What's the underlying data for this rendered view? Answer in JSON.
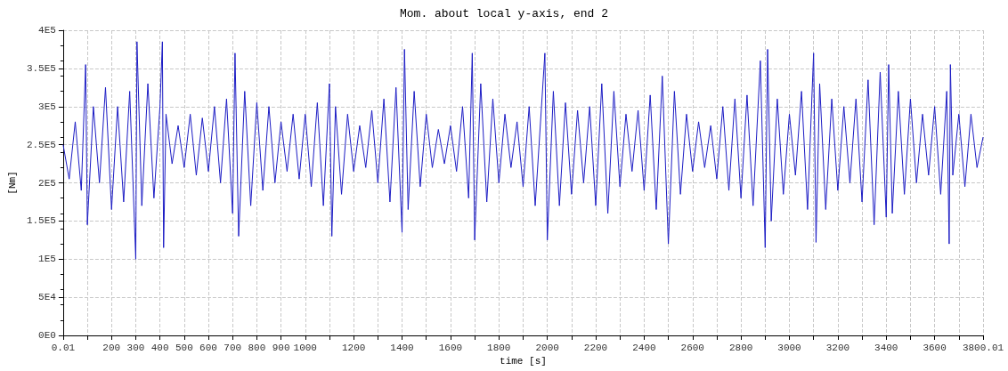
{
  "chart_data": {
    "type": "line",
    "title": "Mom. about local y-axis, end 2",
    "xlabel": "time [s]",
    "ylabel": "[Nm]",
    "x": [
      0.01,
      25,
      50,
      75,
      93,
      100,
      125,
      150,
      175,
      200,
      225,
      250,
      275,
      300,
      305,
      325,
      350,
      375,
      400,
      410,
      415,
      425,
      450,
      475,
      500,
      525,
      550,
      575,
      600,
      625,
      650,
      675,
      700,
      710,
      725,
      750,
      775,
      800,
      825,
      850,
      875,
      900,
      925,
      950,
      975,
      1000,
      1025,
      1050,
      1075,
      1100,
      1110,
      1125,
      1150,
      1175,
      1200,
      1225,
      1250,
      1275,
      1300,
      1325,
      1350,
      1375,
      1400,
      1410,
      1425,
      1450,
      1475,
      1500,
      1525,
      1550,
      1575,
      1600,
      1625,
      1650,
      1675,
      1690,
      1700,
      1725,
      1750,
      1775,
      1800,
      1825,
      1850,
      1875,
      1900,
      1925,
      1950,
      1990,
      2000,
      2025,
      2050,
      2075,
      2100,
      2125,
      2150,
      2175,
      2200,
      2225,
      2250,
      2275,
      2300,
      2325,
      2350,
      2375,
      2400,
      2425,
      2450,
      2475,
      2500,
      2525,
      2550,
      2575,
      2600,
      2625,
      2650,
      2675,
      2700,
      2725,
      2750,
      2775,
      2800,
      2825,
      2850,
      2880,
      2900,
      2910,
      2925,
      2950,
      2975,
      3000,
      3025,
      3050,
      3075,
      3100,
      3110,
      3125,
      3150,
      3175,
      3200,
      3225,
      3250,
      3275,
      3300,
      3325,
      3350,
      3375,
      3400,
      3410,
      3425,
      3450,
      3475,
      3500,
      3525,
      3550,
      3575,
      3600,
      3625,
      3650,
      3660,
      3665,
      3675,
      3700,
      3725,
      3750,
      3775,
      3800.01
    ],
    "series": [
      {
        "color": "#1c1cc4",
        "values": [
          250000,
          205000,
          280000,
          190000,
          355000,
          145000,
          300000,
          200000,
          325000,
          165000,
          300000,
          175000,
          320000,
          100000,
          385000,
          170000,
          330000,
          180000,
          300000,
          385000,
          115000,
          290000,
          225000,
          275000,
          220000,
          290000,
          210000,
          285000,
          215000,
          300000,
          200000,
          310000,
          160000,
          370000,
          130000,
          320000,
          170000,
          305000,
          190000,
          300000,
          200000,
          280000,
          215000,
          290000,
          205000,
          290000,
          195000,
          305000,
          170000,
          330000,
          130000,
          300000,
          185000,
          290000,
          215000,
          275000,
          220000,
          295000,
          200000,
          310000,
          175000,
          325000,
          135000,
          375000,
          165000,
          320000,
          195000,
          290000,
          220000,
          270000,
          225000,
          275000,
          215000,
          300000,
          180000,
          370000,
          125000,
          330000,
          175000,
          310000,
          200000,
          290000,
          220000,
          280000,
          195000,
          300000,
          170000,
          370000,
          125000,
          320000,
          170000,
          305000,
          185000,
          295000,
          200000,
          300000,
          170000,
          330000,
          160000,
          320000,
          195000,
          290000,
          215000,
          295000,
          190000,
          315000,
          165000,
          340000,
          120000,
          320000,
          185000,
          290000,
          215000,
          280000,
          220000,
          275000,
          205000,
          300000,
          190000,
          310000,
          180000,
          315000,
          170000,
          360000,
          115000,
          375000,
          150000,
          310000,
          185000,
          290000,
          210000,
          320000,
          165000,
          370000,
          122000,
          330000,
          165000,
          310000,
          190000,
          300000,
          200000,
          310000,
          175000,
          335000,
          145000,
          345000,
          155000,
          355000,
          160000,
          320000,
          185000,
          310000,
          200000,
          290000,
          210000,
          300000,
          185000,
          320000,
          120000,
          355000,
          210000,
          290000,
          195000,
          290000,
          220000,
          260000
        ]
      }
    ],
    "xlim": [
      0.01,
      3800.01
    ],
    "xticks": [
      0.01,
      {
        "value": 100,
        "label": null
      },
      200,
      300,
      400,
      500,
      600,
      700,
      800,
      900,
      1000,
      {
        "value": 1100,
        "label": null
      },
      1200,
      {
        "value": 1300,
        "label": null
      },
      1400,
      {
        "value": 1500,
        "label": null
      },
      1600,
      {
        "value": 1700,
        "label": null
      },
      1800,
      {
        "value": 1900,
        "label": null
      },
      2000,
      {
        "value": 2100,
        "label": null
      },
      2200,
      {
        "value": 2300,
        "label": null
      },
      2400,
      {
        "value": 2500,
        "label": null
      },
      2600,
      {
        "value": 2700,
        "label": null
      },
      2800,
      {
        "value": 2900,
        "label": null
      },
      3000,
      {
        "value": 3100,
        "label": null
      },
      3200,
      {
        "value": 3300,
        "label": null
      },
      3400,
      {
        "value": 3500,
        "label": null
      },
      3600,
      {
        "value": 3700,
        "label": null
      },
      3800.01
    ],
    "ylim": [
      0,
      400000
    ],
    "yticks": [
      {
        "value": 0,
        "label": "0E0"
      },
      {
        "value": 50000,
        "label": "5E4"
      },
      {
        "value": 100000,
        "label": "1E5"
      },
      {
        "value": 150000,
        "label": "1.5E5"
      },
      {
        "value": 200000,
        "label": "2E5"
      },
      {
        "value": 250000,
        "label": "2.5E5"
      },
      {
        "value": 300000,
        "label": "3E5"
      },
      {
        "value": 350000,
        "label": "3.5E5"
      },
      {
        "value": 400000,
        "label": "4E5"
      }
    ],
    "grid": true,
    "marker": "none",
    "line_style": "solid"
  }
}
